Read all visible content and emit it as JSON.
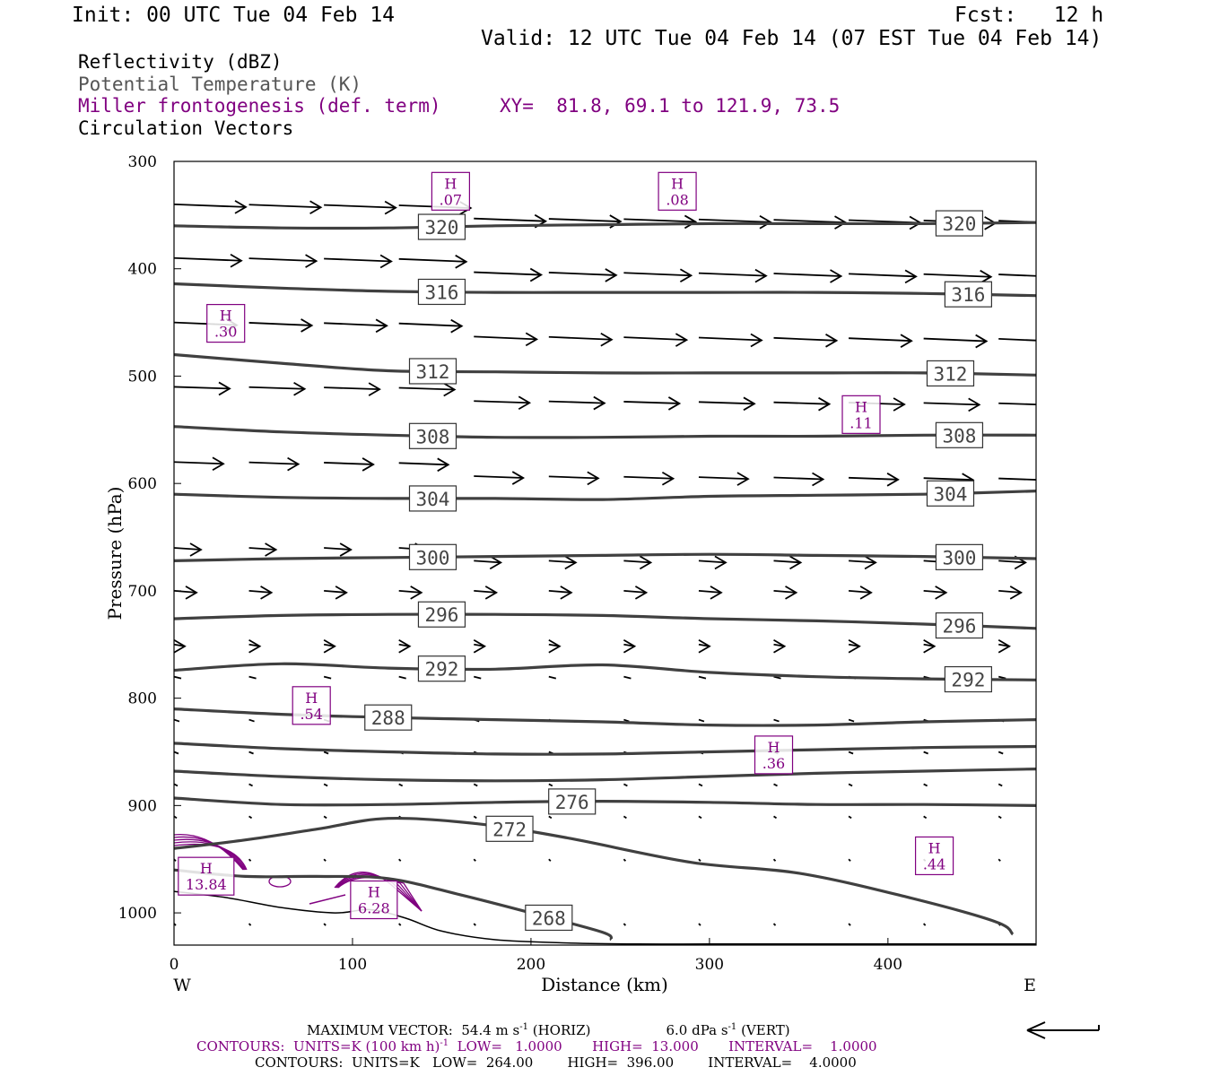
{
  "header": {
    "init": "Init: 00 UTC Tue 04 Feb 14",
    "fcst": "Fcst:   12 h",
    "valid": "Valid: 12 UTC Tue 04 Feb 14 (07 EST Tue 04 Feb 14)"
  },
  "legend": {
    "reflectivity": "Reflectivity (dBZ)",
    "theta": "Potential Temperature (K)",
    "frontogenesis": "Miller frontogenesis (def. term)",
    "xy": "XY=  81.8, 69.1 to 121.9, 73.5",
    "vectors": "Circulation Vectors"
  },
  "colors": {
    "theta": "#404040",
    "frontogenesis": "#800080",
    "vectors": "#000000"
  },
  "chart_data": {
    "type": "line",
    "xlabel": "Distance (km)",
    "ylabel": "Pressure (hPa)",
    "xlim": [
      0,
      483
    ],
    "ylim": [
      1030,
      300
    ],
    "x_ticks": [
      0,
      100,
      200,
      300,
      400
    ],
    "y_ticks": [
      300,
      400,
      500,
      600,
      700,
      800,
      900,
      1000
    ],
    "x_end_labels": {
      "left": "W",
      "right": "E"
    },
    "theta_isentropes": [
      {
        "label": "320",
        "x": [
          0,
          60,
          120,
          180,
          240,
          300,
          360,
          420,
          483
        ],
        "y": [
          360,
          362,
          362,
          360,
          359,
          358,
          358,
          358,
          357
        ]
      },
      {
        "label": "316",
        "x": [
          0,
          60,
          120,
          180,
          240,
          300,
          360,
          420,
          483
        ],
        "y": [
          414,
          418,
          421,
          422,
          422,
          422,
          422,
          423,
          425
        ]
      },
      {
        "label": "312",
        "x": [
          0,
          60,
          120,
          180,
          240,
          300,
          360,
          420,
          483
        ],
        "y": [
          480,
          488,
          495,
          496,
          497,
          497,
          497,
          497,
          499
        ]
      },
      {
        "label": "308",
        "x": [
          0,
          60,
          120,
          180,
          240,
          300,
          360,
          420,
          483
        ],
        "y": [
          547,
          552,
          555,
          557,
          557,
          556,
          556,
          555,
          555
        ]
      },
      {
        "label": "304",
        "x": [
          0,
          60,
          120,
          180,
          240,
          300,
          360,
          420,
          483
        ],
        "y": [
          610,
          613,
          614,
          614,
          615,
          612,
          611,
          610,
          607
        ]
      },
      {
        "label": "300",
        "x": [
          0,
          60,
          120,
          180,
          240,
          300,
          360,
          420,
          483
        ],
        "y": [
          672,
          670,
          669,
          668,
          667,
          666,
          667,
          668,
          670
        ]
      },
      {
        "label": "296",
        "x": [
          0,
          60,
          120,
          180,
          240,
          300,
          360,
          420,
          483
        ],
        "y": [
          726,
          723,
          722,
          722,
          723,
          726,
          728,
          731,
          735
        ]
      },
      {
        "label": "292",
        "x": [
          0,
          60,
          120,
          180,
          240,
          300,
          360,
          420,
          483
        ],
        "y": [
          774,
          768,
          772,
          773,
          769,
          776,
          780,
          782,
          783
        ]
      },
      {
        "label": "288",
        "x": [
          0,
          60,
          120,
          180,
          240,
          300,
          360,
          420,
          483
        ],
        "y": [
          810,
          815,
          818,
          820,
          822,
          825,
          825,
          822,
          820
        ]
      },
      {
        "label": "",
        "x": [
          0,
          60,
          120,
          180,
          240,
          300,
          360,
          420,
          483
        ],
        "y": [
          842,
          847,
          850,
          852,
          852,
          850,
          848,
          846,
          845
        ]
      },
      {
        "label": "",
        "x": [
          0,
          60,
          120,
          180,
          240,
          300,
          360,
          420,
          483
        ],
        "y": [
          868,
          873,
          876,
          877,
          876,
          873,
          870,
          868,
          866
        ]
      },
      {
        "label": "276",
        "x": [
          0,
          60,
          120,
          180,
          240,
          300,
          360,
          420,
          483
        ],
        "y": [
          893,
          899,
          899,
          897,
          896,
          897,
          899,
          899,
          900
        ]
      },
      {
        "label": "272",
        "x": [
          0,
          40,
          80,
          120,
          170,
          220,
          290,
          350,
          410,
          460,
          470
        ],
        "y": [
          940,
          932,
          922,
          912,
          917,
          930,
          953,
          963,
          985,
          1008,
          1020
        ]
      },
      {
        "label": "268",
        "x": [
          0,
          40,
          80,
          120,
          160,
          200,
          240,
          245
        ],
        "y": [
          960,
          966,
          966,
          968,
          983,
          1000,
          1018,
          1025
        ]
      }
    ],
    "frontogenesis_maxima": [
      {
        "label": "H",
        "value": ".07",
        "x": 155,
        "y": 327
      },
      {
        "label": "H",
        "value": ".08",
        "x": 282,
        "y": 327
      },
      {
        "label": "H",
        "value": ".30",
        "x": 29,
        "y": 450
      },
      {
        "label": "H",
        "value": ".11",
        "x": 385,
        "y": 535
      },
      {
        "label": "H",
        "value": ".54",
        "x": 77,
        "y": 806
      },
      {
        "label": "H",
        "value": ".36",
        "x": 336,
        "y": 852
      },
      {
        "label": "H",
        "value": ".44",
        "x": 426,
        "y": 946
      },
      {
        "label": "H",
        "value": "13.84",
        "x": 18,
        "y": 965
      },
      {
        "label": "H",
        "value": "6.28",
        "x": 112,
        "y": 987
      }
    ]
  },
  "footer": {
    "max_vector": "MAXIMUM VECTOR:  54.4 m s",
    "max_vector_horiz": " (HORIZ)",
    "max_vector_vert": "6.0 dPa s",
    "max_vector_vert_end": " (VERT)",
    "contours_purple": "CONTOURS:  UNITS=K (100 km h)",
    "contours_purple_rest": "  LOW=   1.0000       HIGH=  13.000       INTERVAL=    1.0000",
    "contours_black": "CONTOURS:  UNITS=K   LOW=  264.00        HIGH=  396.00        INTERVAL=    4.0000"
  }
}
